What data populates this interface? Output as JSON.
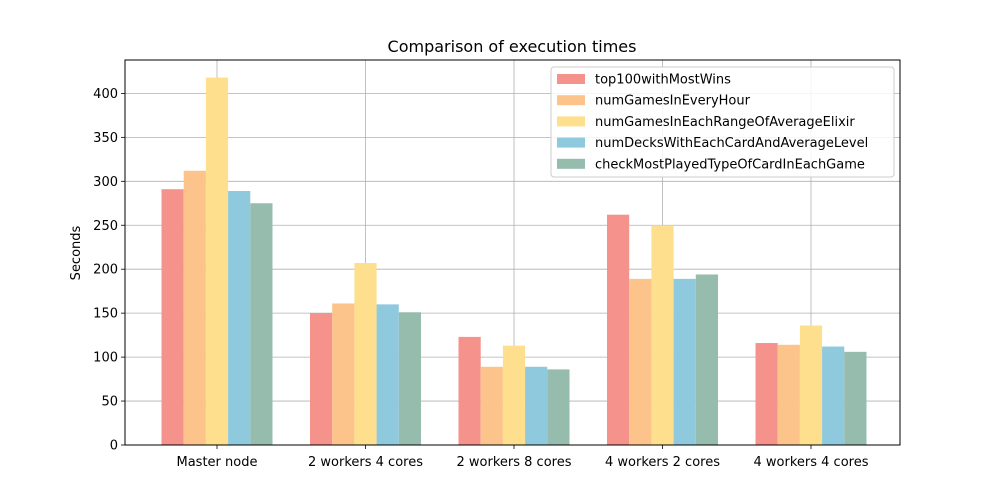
{
  "chart_data": {
    "type": "bar",
    "title": "Comparison of execution times",
    "xlabel": "",
    "ylabel": "Seconds",
    "ylim": [
      0,
      438
    ],
    "yticks": [
      0,
      50,
      100,
      150,
      200,
      250,
      300,
      350,
      400
    ],
    "grid": true,
    "legend_position": "top-right",
    "categories": [
      "Master node",
      "2 workers 4 cores",
      "2 workers 8 cores",
      "4 workers 2 cores",
      "4 workers 4 cores"
    ],
    "series": [
      {
        "name": "top100withMostWins",
        "color": "#f4928b",
        "values": [
          291,
          150,
          123,
          262,
          116
        ]
      },
      {
        "name": "numGamesInEveryHour",
        "color": "#fcc48b",
        "values": [
          312,
          161,
          89,
          189,
          114
        ]
      },
      {
        "name": "numGamesInEachRangeOfAverageElixir",
        "color": "#fddf8d",
        "values": [
          418,
          207,
          113,
          250,
          136
        ]
      },
      {
        "name": "numDecksWithEachCardAndAverageLevel",
        "color": "#8fc9de",
        "values": [
          289,
          160,
          89,
          189,
          112
        ]
      },
      {
        "name": "checkMostPlayedTypeOfCardInEachGame",
        "color": "#96bcae",
        "values": [
          275,
          151,
          86,
          194,
          106
        ]
      }
    ]
  }
}
